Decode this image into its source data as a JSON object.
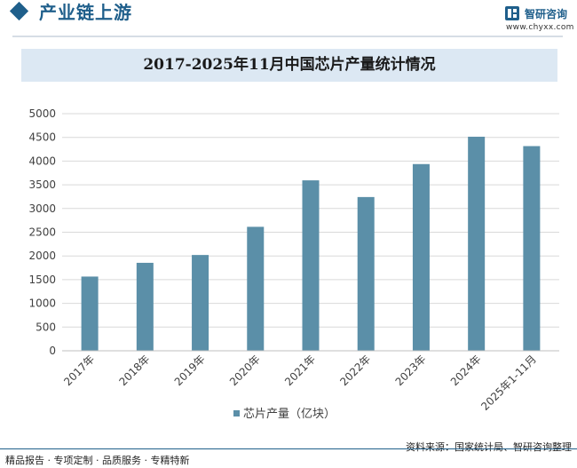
{
  "header": {
    "section_title": "产业链上游",
    "brand_name": "智研咨询",
    "brand_url": "www.chyxx.com"
  },
  "footer": {
    "left": "精品报告 · 专项定制 · 品质服务 · 专精特新",
    "right": "资料来源：国家统计局、智研咨询整理"
  },
  "colors": {
    "bar": "#5b8fa8",
    "accent": "#1f5f8b",
    "title_bg": "#dce8f3"
  },
  "chart_data": {
    "type": "bar",
    "title": "2017-2025年11月中国芯片产量统计情况",
    "categories": [
      "2017年",
      "2018年",
      "2019年",
      "2020年",
      "2021年",
      "2022年",
      "2023年",
      "2024年",
      "2025年1-11月"
    ],
    "series": [
      {
        "name": "芯片产量（亿块）",
        "values": [
          1565,
          1855,
          2020,
          2614,
          3594,
          3242,
          3937,
          4514,
          4316
        ]
      }
    ],
    "ylim": [
      0,
      5000
    ],
    "yticks": [
      0,
      500,
      1000,
      1500,
      2000,
      2500,
      3000,
      3500,
      4000,
      4500,
      5000
    ],
    "grid": true,
    "legend": "bottom"
  }
}
